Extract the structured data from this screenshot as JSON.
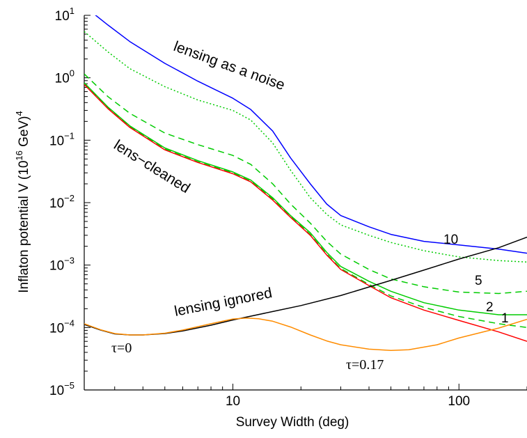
{
  "chart_data": {
    "type": "line",
    "xlabel": "Survey Width (deg)",
    "ylabel_parts": {
      "main": "Inflaton potential V (10",
      "exp": "16",
      "mid": " GeV)",
      "exp2": "4"
    },
    "xscale": "log",
    "yscale": "log",
    "xlim": [
      2.2,
      200
    ],
    "ylim": [
      1e-05,
      10
    ],
    "grid": false,
    "legend": "none",
    "x_ticks": [
      {
        "value": 10,
        "label": "10"
      },
      {
        "value": 100,
        "label": "100"
      }
    ],
    "y_ticks": [
      {
        "value": 10,
        "base": "10",
        "exp": "1"
      },
      {
        "value": 1,
        "base": "10",
        "exp": "0"
      },
      {
        "value": 0.1,
        "base": "10",
        "exp": "−1"
      },
      {
        "value": 0.01,
        "base": "10",
        "exp": "−2"
      },
      {
        "value": 0.001,
        "base": "10",
        "exp": "−3"
      },
      {
        "value": 0.0001,
        "base": "10",
        "exp": "−4"
      },
      {
        "value": 1e-05,
        "base": "10",
        "exp": "−5"
      }
    ],
    "series": [
      {
        "key": "noise_blue",
        "color": "#0000ff",
        "dash": "",
        "x": [
          2.2,
          2.8,
          3.5,
          5,
          7,
          10,
          12,
          15,
          18,
          22,
          26,
          30,
          40,
          50,
          70,
          100,
          150,
          200
        ],
        "y": [
          14,
          7,
          3.8,
          1.7,
          0.88,
          0.47,
          0.31,
          0.14,
          0.052,
          0.02,
          0.0095,
          0.0062,
          0.0041,
          0.0031,
          0.0024,
          0.0021,
          0.0018,
          0.00155
        ]
      },
      {
        "key": "dotted_10",
        "color": "#00cc00",
        "dash": "2,3",
        "x": [
          2.2,
          2.8,
          3.5,
          5,
          7,
          10,
          12,
          15,
          18,
          22,
          26,
          30,
          40,
          50,
          70,
          100,
          150,
          200
        ],
        "y": [
          5.5,
          2.6,
          1.4,
          0.72,
          0.44,
          0.3,
          0.21,
          0.09,
          0.033,
          0.012,
          0.0065,
          0.0044,
          0.003,
          0.0023,
          0.0017,
          0.00135,
          0.00118,
          0.00112
        ]
      },
      {
        "key": "dashed_5",
        "color": "#00cc00",
        "dash": "9,6",
        "x": [
          2.2,
          2.8,
          3.5,
          5,
          7,
          10,
          12,
          15,
          18,
          22,
          26,
          30,
          40,
          50,
          70,
          100,
          150,
          200
        ],
        "y": [
          1.15,
          0.5,
          0.27,
          0.13,
          0.085,
          0.057,
          0.041,
          0.02,
          0.0095,
          0.0047,
          0.0024,
          0.0015,
          0.00085,
          0.0006,
          0.00045,
          0.00037,
          0.00035,
          0.00038
        ]
      },
      {
        "key": "solid_2",
        "color": "#00cc00",
        "dash": "",
        "x": [
          2.2,
          2.8,
          3.5,
          5,
          7,
          10,
          12,
          15,
          18,
          22,
          26,
          30,
          40,
          50,
          70,
          100,
          150,
          200
        ],
        "y": [
          0.83,
          0.34,
          0.17,
          0.075,
          0.047,
          0.031,
          0.023,
          0.012,
          0.0062,
          0.0033,
          0.0016,
          0.00095,
          0.00055,
          0.00038,
          0.00025,
          0.00019,
          0.00016,
          0.00016
        ]
      },
      {
        "key": "dashed_1",
        "color": "#00cc00",
        "dash": "9,6",
        "x": [
          2.2,
          2.8,
          3.5,
          5,
          7,
          10,
          12,
          15,
          18,
          22,
          26,
          30,
          40,
          50,
          70,
          100,
          150,
          200
        ],
        "y": [
          0.8,
          0.33,
          0.165,
          0.072,
          0.045,
          0.03,
          0.022,
          0.0115,
          0.006,
          0.0031,
          0.0015,
          0.00088,
          0.00049,
          0.00032,
          0.00021,
          0.00015,
          0.000115,
          0.0001
        ]
      },
      {
        "key": "lens_cleaned_red",
        "color": "#ff0000",
        "dash": "",
        "x": [
          2.2,
          2.8,
          3.5,
          5,
          7,
          10,
          12,
          15,
          18,
          22,
          26,
          30,
          40,
          50,
          70,
          100,
          150,
          200
        ],
        "y": [
          0.78,
          0.32,
          0.16,
          0.07,
          0.044,
          0.029,
          0.0215,
          0.011,
          0.0058,
          0.003,
          0.00145,
          0.00085,
          0.00047,
          0.0003,
          0.00019,
          0.00013,
          8.5e-05,
          6e-05
        ]
      },
      {
        "key": "ignored_black",
        "color": "#000000",
        "dash": "",
        "x": [
          2.2,
          2.6,
          3,
          3.5,
          4,
          5,
          6,
          8,
          10,
          15,
          20,
          30,
          50,
          70,
          100,
          150,
          200
        ],
        "y": [
          0.000112,
          9.1e-05,
          7.9e-05,
          7.6e-05,
          7.6e-05,
          8e-05,
          8.8e-05,
          0.000109,
          0.000132,
          0.00018,
          0.000225,
          0.000325,
          0.00057,
          0.00083,
          0.00125,
          0.0019,
          0.0028
        ]
      },
      {
        "key": "tau_017_orange",
        "color": "#ff8c00",
        "dash": "",
        "x": [
          2.2,
          2.6,
          3,
          3.5,
          4,
          5,
          6,
          8,
          10,
          11.5,
          13,
          15,
          18,
          22,
          26,
          30,
          40,
          50,
          60,
          80,
          100,
          150,
          200
        ],
        "y": [
          0.000115,
          9.2e-05,
          8e-05,
          7.6e-05,
          7.6e-05,
          8.1e-05,
          9.1e-05,
          0.000115,
          0.000137,
          0.000142,
          0.000138,
          0.000126,
          0.000102,
          7.6e-05,
          6.1e-05,
          5.3e-05,
          4.5e-05,
          4.3e-05,
          4.4e-05,
          5.3e-05,
          6.8e-05,
          9.8e-05,
          0.000135
        ]
      }
    ],
    "annotations": [
      {
        "text": "lensing as a noise"
      },
      {
        "text": "lens−cleaned"
      },
      {
        "text": "lensing ignored"
      }
    ],
    "curve_numbers": [
      "10",
      "5",
      "2",
      "1"
    ],
    "tau_labels": [
      "τ=0",
      "τ=0.17"
    ]
  }
}
